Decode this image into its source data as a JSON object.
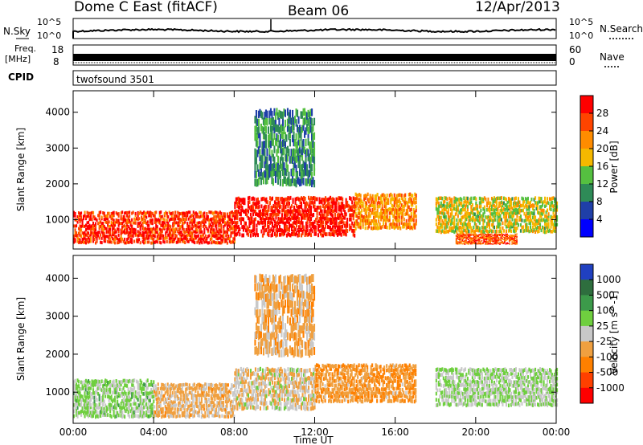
{
  "header": {
    "title": "Dome C East (fitACF)",
    "beam": "Beam 06",
    "date": "12/Apr/2013"
  },
  "noise_panel": {
    "left_label": "N.Sky",
    "right_label": "N.Search",
    "left_tick_top": "10^5",
    "left_tick_bottom": "10^0",
    "right_tick_top": "10^5",
    "right_tick_bottom": "10^0"
  },
  "freq_panel": {
    "left_label_top": "Freq.",
    "left_label_bottom": "[MHz]",
    "right_label": "Nave",
    "left_ticks": [
      "18",
      "8"
    ],
    "right_ticks": [
      "60",
      "0"
    ]
  },
  "cpid_panel": {
    "label": "CPID",
    "program": "twofsound 3501"
  },
  "colors": {
    "power_scale": [
      "#0000ff",
      "#1f3fa8",
      "#2e8b57",
      "#55c040",
      "#f5b800",
      "#ff8c00",
      "#ff4400",
      "#ff0000"
    ],
    "velocity_scale": [
      "#2040c0",
      "#2e6e3e",
      "#3c9a4a",
      "#6fcf3f",
      "#c8c8c8",
      "#f0a040",
      "#ff8000",
      "#ff4000",
      "#ff0000"
    ],
    "ground_scatter": "#b0b0b0"
  },
  "chart_data": [
    {
      "type": "heatmap",
      "panel": "power",
      "ylabel": "Slant Range [km]",
      "xlabel": "",
      "x_ticks": [
        "00:00",
        "04:00",
        "08:00",
        "12:00",
        "16:00",
        "20:00",
        "00:00"
      ],
      "xlim_hours": [
        0,
        24
      ],
      "ylim": [
        180,
        4600
      ],
      "y_ticks": [
        1000,
        2000,
        3000,
        4000
      ],
      "colorbar": {
        "label": "Power [dB]",
        "ticks": [
          "4",
          "8",
          "12",
          "16",
          "20",
          "24",
          "28"
        ],
        "range": [
          0,
          30
        ]
      },
      "scatter_regions": [
        {
          "t_start": 0,
          "t_end": 8,
          "range_min": 300,
          "range_max": 1200,
          "value": 26
        },
        {
          "t_start": 8,
          "t_end": 14,
          "range_min": 500,
          "range_max": 1600,
          "value": 28
        },
        {
          "t_start": 14,
          "t_end": 17,
          "range_min": 700,
          "range_max": 1700,
          "value": 20
        },
        {
          "t_start": 18,
          "t_end": 24,
          "range_min": 600,
          "range_max": 1600,
          "value": 16
        },
        {
          "t_start": 9,
          "t_end": 12,
          "range_min": 1900,
          "range_max": 4000,
          "value": 10
        },
        {
          "t_start": 19,
          "t_end": 22,
          "range_min": 300,
          "range_max": 600,
          "value": 24
        }
      ]
    },
    {
      "type": "heatmap",
      "panel": "velocity",
      "ylabel": "Slant Range [km]",
      "xlabel": "Time UT",
      "x_ticks": [
        "00:00",
        "04:00",
        "08:00",
        "12:00",
        "16:00",
        "20:00",
        "00:00"
      ],
      "xlim_hours": [
        0,
        24
      ],
      "ylim": [
        180,
        4600
      ],
      "y_ticks": [
        1000,
        2000,
        3000,
        4000
      ],
      "colorbar": {
        "label": "Velocity [m s^-1]",
        "ticks": [
          "1000",
          "500",
          "100",
          "25",
          "-25",
          "-100",
          "-500",
          "-1000"
        ],
        "range": [
          -1000,
          1000
        ]
      },
      "scatter_regions": [
        {
          "t_start": 0,
          "t_end": 4,
          "range_min": 300,
          "range_max": 1300,
          "value": 150
        },
        {
          "t_start": 4,
          "t_end": 8,
          "range_min": 300,
          "range_max": 1200,
          "value": -150
        },
        {
          "t_start": 8,
          "t_end": 12,
          "range_min": 500,
          "range_max": 1600,
          "value": -50
        },
        {
          "t_start": 12,
          "t_end": 17,
          "range_min": 700,
          "range_max": 1700,
          "value": -300
        },
        {
          "t_start": 18,
          "t_end": 24,
          "range_min": 600,
          "range_max": 1600,
          "value": 120
        },
        {
          "t_start": 9,
          "t_end": 12,
          "range_min": 1900,
          "range_max": 4000,
          "value": -200
        }
      ]
    }
  ]
}
